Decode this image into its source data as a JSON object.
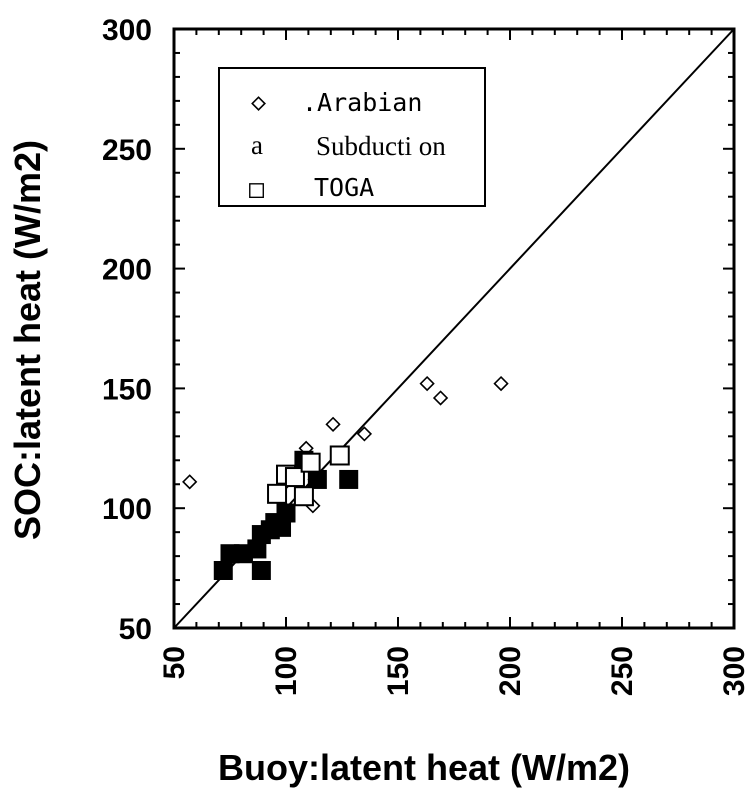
{
  "chart_data": {
    "type": "scatter",
    "title": "",
    "xlabel": "Buoy:latent heat (W/m2)",
    "ylabel": "SOC:latent heat (W/m2)",
    "xlim": [
      50,
      300
    ],
    "ylim": [
      50,
      300
    ],
    "x_ticks": [
      "50",
      "100",
      "150",
      "200",
      "250",
      "300"
    ],
    "y_ticks": [
      "50",
      "100",
      "150",
      "200",
      "250",
      "300"
    ],
    "reference_line": "1:1",
    "legend_position": "top-left",
    "series": [
      {
        "name": "Arabian",
        "legend_label": ".Arabian",
        "legend_symbol": "◇",
        "marker": "diamond-open",
        "points": [
          [
            57,
            111
          ],
          [
            99,
            110
          ],
          [
            109,
            125
          ],
          [
            112,
            101
          ],
          [
            113,
            112
          ],
          [
            121,
            135
          ],
          [
            135,
            131
          ],
          [
            163,
            152
          ],
          [
            169,
            146
          ],
          [
            196,
            152
          ]
        ]
      },
      {
        "name": "Subduction",
        "legend_label": "Subducti on",
        "legend_symbol": "a",
        "marker": "square-filled",
        "points": [
          [
            72,
            74
          ],
          [
            75,
            81
          ],
          [
            81,
            81
          ],
          [
            87,
            83
          ],
          [
            89,
            89
          ],
          [
            89,
            74
          ],
          [
            93,
            91
          ],
          [
            95,
            94
          ],
          [
            98,
            92
          ],
          [
            100,
            98
          ],
          [
            108,
            120
          ],
          [
            114,
            112
          ],
          [
            128,
            112
          ]
        ]
      },
      {
        "name": "TOGA",
        "legend_label": "TOGA",
        "legend_symbol": "□",
        "marker": "square-open",
        "points": [
          [
            96,
            106
          ],
          [
            100,
            114
          ],
          [
            104,
            113
          ],
          [
            108,
            105
          ],
          [
            111,
            119
          ],
          [
            124,
            122
          ]
        ]
      }
    ]
  }
}
